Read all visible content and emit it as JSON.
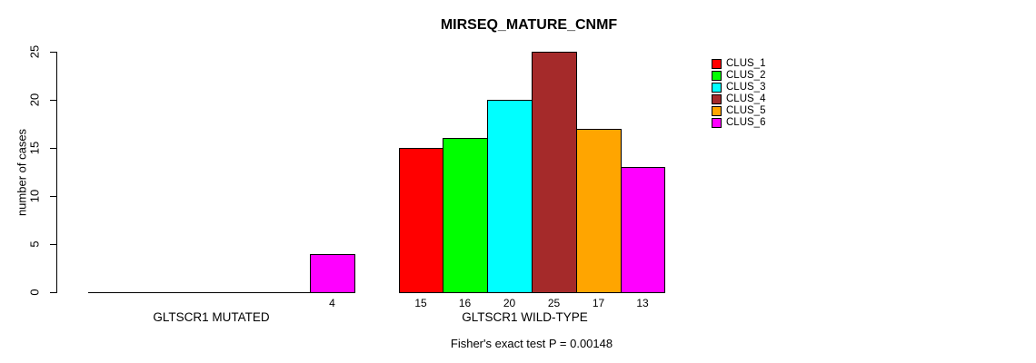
{
  "chart_data": {
    "type": "bar",
    "title": "MIRSEQ_MATURE_CNMF",
    "ylabel": "number of cases",
    "xlabel": "",
    "ylim": [
      0,
      25
    ],
    "yticks": [
      0,
      5,
      10,
      15,
      20,
      25
    ],
    "grid": false,
    "legend_position": "right",
    "categories": [
      "GLTSCR1 MUTATED",
      "GLTSCR1 WILD-TYPE"
    ],
    "series": [
      {
        "name": "CLUS_1",
        "color": "#ff0000",
        "values": [
          0,
          15
        ]
      },
      {
        "name": "CLUS_2",
        "color": "#00ff00",
        "values": [
          0,
          16
        ]
      },
      {
        "name": "CLUS_3",
        "color": "#00ffff",
        "values": [
          0,
          20
        ]
      },
      {
        "name": "CLUS_4",
        "color": "#a52a2a",
        "values": [
          0,
          25
        ]
      },
      {
        "name": "CLUS_5",
        "color": "#ffa500",
        "values": [
          0,
          17
        ]
      },
      {
        "name": "CLUS_6",
        "color": "#ff00ff",
        "values": [
          4,
          13
        ]
      }
    ],
    "bar_value_labels": "shown under each non-zero bar",
    "caption": "Fisher's exact test P = 0.00148"
  }
}
